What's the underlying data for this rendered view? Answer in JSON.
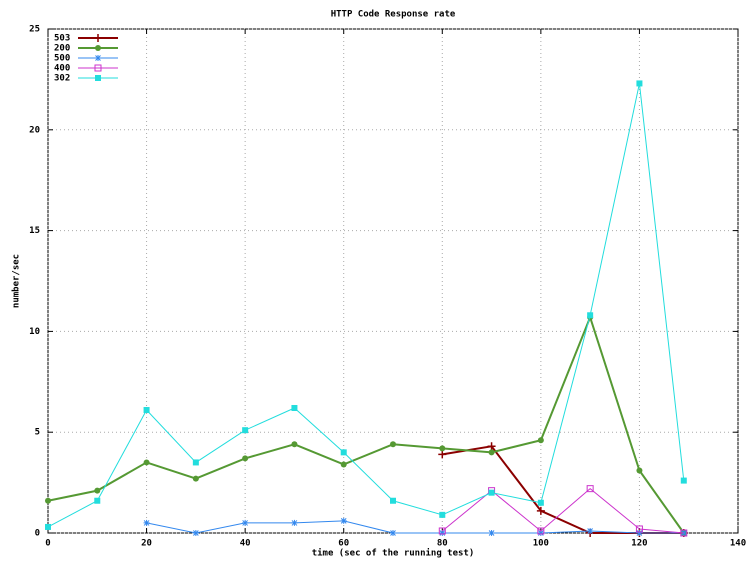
{
  "chart_data": {
    "type": "line",
    "title": "HTTP Code Response rate",
    "x_label": "time (sec of the running test)",
    "y_label": "number/sec",
    "xlim": [
      0,
      140
    ],
    "xticks": [
      0,
      20,
      40,
      60,
      80,
      100,
      120,
      140
    ],
    "ylim": [
      0,
      25
    ],
    "yticks": [
      0,
      5,
      10,
      15,
      20,
      25
    ],
    "grid": true,
    "legend": "top-left",
    "series": [
      {
        "name": "503",
        "color": "#8b0000",
        "marker": "plus",
        "x": [
          80,
          90,
          100,
          110,
          120,
          129
        ],
        "values": [
          3.9,
          4.3,
          1.1,
          0,
          0,
          0
        ]
      },
      {
        "name": "200",
        "color": "#559933",
        "marker": "circle",
        "x": [
          0,
          10,
          20,
          30,
          40,
          50,
          60,
          70,
          80,
          90,
          100,
          110,
          120,
          129
        ],
        "values": [
          1.6,
          2.1,
          3.5,
          2.7,
          3.7,
          4.4,
          3.4,
          4.4,
          4.2,
          4.0,
          4.6,
          10.7,
          3.1,
          0
        ]
      },
      {
        "name": "500",
        "color": "#3388ee",
        "marker": "star",
        "x": [
          20,
          30,
          40,
          50,
          60,
          70,
          80,
          90,
          100,
          110,
          120,
          129
        ],
        "values": [
          0.5,
          0,
          0.5,
          0.5,
          0.6,
          0,
          0,
          0,
          0,
          0.1,
          0,
          0
        ]
      },
      {
        "name": "400",
        "color": "#cc33cc",
        "marker": "square-open",
        "x": [
          80,
          90,
          100,
          110,
          120,
          129
        ],
        "values": [
          0.1,
          2.1,
          0.1,
          2.2,
          0.2,
          0
        ]
      },
      {
        "name": "302",
        "color": "#22dddd",
        "marker": "square",
        "x": [
          0,
          10,
          20,
          30,
          40,
          50,
          60,
          70,
          80,
          90,
          100,
          110,
          120,
          129
        ],
        "values": [
          0.3,
          1.6,
          6.1,
          3.5,
          5.1,
          6.2,
          4.0,
          1.6,
          0.9,
          2.0,
          1.5,
          10.8,
          22.3,
          2.6
        ]
      }
    ]
  }
}
